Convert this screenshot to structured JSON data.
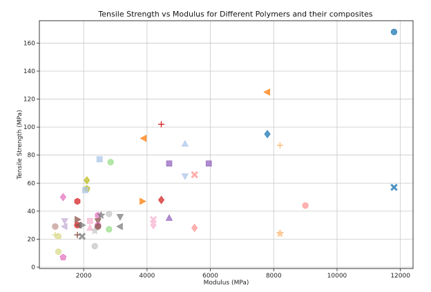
{
  "chart_data": {
    "type": "scatter",
    "title": "Tensile Strength vs Modulus for Different Polymers and their composites",
    "xlabel": "Modulus (MPa)",
    "ylabel": "Tensile Strength (MPa)",
    "xlim": [
      600,
      12400
    ],
    "ylim": [
      -1,
      176
    ],
    "xticks": [
      2000,
      4000,
      6000,
      8000,
      10000,
      12000
    ],
    "yticks": [
      0,
      20,
      40,
      60,
      80,
      100,
      120,
      140,
      160
    ],
    "xtick_labels": [
      "2000",
      "4000",
      "6000",
      "8000",
      "10000",
      "12000"
    ],
    "ytick_labels": [
      "0",
      "20",
      "40",
      "60",
      "80",
      "100",
      "120",
      "140",
      "160"
    ],
    "grid": true,
    "points": [
      {
        "x": 11800,
        "y": 168,
        "marker": "circle",
        "color": "#1f77b4"
      },
      {
        "x": 11800,
        "y": 57,
        "marker": "x",
        "color": "#1f77b4"
      },
      {
        "x": 7800,
        "y": 95,
        "marker": "diamond",
        "color": "#1f77b4"
      },
      {
        "x": 7800,
        "y": 125,
        "marker": "tri-left",
        "color": "#ff7f0e"
      },
      {
        "x": 8200,
        "y": 87,
        "marker": "plus",
        "color": "#ffbb78"
      },
      {
        "x": 8200,
        "y": 24,
        "marker": "star",
        "color": "#ffbb78"
      },
      {
        "x": 9000,
        "y": 44,
        "marker": "circle",
        "color": "#ff9896"
      },
      {
        "x": 3900,
        "y": 92,
        "marker": "tri-left",
        "color": "#ff7f0e"
      },
      {
        "x": 3850,
        "y": 47,
        "marker": "tri-right",
        "color": "#ff7f0e"
      },
      {
        "x": 4450,
        "y": 102,
        "marker": "plus",
        "color": "#d62728"
      },
      {
        "x": 4450,
        "y": 48,
        "marker": "diamond",
        "color": "#d62728"
      },
      {
        "x": 4700,
        "y": 74,
        "marker": "square",
        "color": "#9467bd"
      },
      {
        "x": 5950,
        "y": 74,
        "marker": "square",
        "color": "#9467bd"
      },
      {
        "x": 4700,
        "y": 35,
        "marker": "tri-up",
        "color": "#9467bd"
      },
      {
        "x": 5200,
        "y": 88,
        "marker": "tri-up",
        "color": "#aec7e8"
      },
      {
        "x": 5200,
        "y": 65,
        "marker": "tri-down",
        "color": "#aec7e8"
      },
      {
        "x": 5500,
        "y": 66,
        "marker": "x",
        "color": "#ff9896"
      },
      {
        "x": 5500,
        "y": 28,
        "marker": "diamond",
        "color": "#ff9896"
      },
      {
        "x": 4200,
        "y": 34,
        "marker": "x",
        "color": "#f7b6d2"
      },
      {
        "x": 4200,
        "y": 30,
        "marker": "diamond",
        "color": "#f7b6d2"
      },
      {
        "x": 2500,
        "y": 77,
        "marker": "square",
        "color": "#aec7e8"
      },
      {
        "x": 2850,
        "y": 75,
        "marker": "circle",
        "color": "#98df8a"
      },
      {
        "x": 2800,
        "y": 27,
        "marker": "circle",
        "color": "#98df8a"
      },
      {
        "x": 2100,
        "y": 62,
        "marker": "diamond",
        "color": "#bcbd22"
      },
      {
        "x": 2100,
        "y": 56,
        "marker": "pentagon",
        "color": "#bcbd22"
      },
      {
        "x": 2050,
        "y": 55,
        "marker": "square",
        "color": "#aec7e8"
      },
      {
        "x": 1800,
        "y": 47,
        "marker": "hexagon",
        "color": "#d62728"
      },
      {
        "x": 1350,
        "y": 50,
        "marker": "diamond",
        "color": "#e377c2"
      },
      {
        "x": 1800,
        "y": 34,
        "marker": "tri-right",
        "color": "#8c564b"
      },
      {
        "x": 1800,
        "y": 30,
        "marker": "circle",
        "color": "#d62728"
      },
      {
        "x": 1850,
        "y": 30,
        "marker": "tri-left",
        "color": "#8c564b"
      },
      {
        "x": 1950,
        "y": 30,
        "marker": "tri-right",
        "color": "#7f7f7f"
      },
      {
        "x": 1800,
        "y": 23,
        "marker": "plus",
        "color": "#8c564b"
      },
      {
        "x": 1950,
        "y": 22,
        "marker": "x",
        "color": "#7f7f7f"
      },
      {
        "x": 1400,
        "y": 33,
        "marker": "tri-down",
        "color": "#c5b0d5"
      },
      {
        "x": 1400,
        "y": 29,
        "marker": "tri-left",
        "color": "#c5b0d5"
      },
      {
        "x": 1100,
        "y": 29,
        "marker": "circle",
        "color": "#c49c94"
      },
      {
        "x": 1100,
        "y": 23,
        "marker": "plus",
        "color": "#dbdb8d"
      },
      {
        "x": 1200,
        "y": 22,
        "marker": "circle",
        "color": "#dbdb8d"
      },
      {
        "x": 1200,
        "y": 11,
        "marker": "circle",
        "color": "#dbdb8d"
      },
      {
        "x": 1350,
        "y": 7,
        "marker": "pentagon",
        "color": "#e377c2"
      },
      {
        "x": 2200,
        "y": 33,
        "marker": "square",
        "color": "#f7b6d2"
      },
      {
        "x": 2200,
        "y": 28,
        "marker": "tri-up",
        "color": "#f7b6d2"
      },
      {
        "x": 2350,
        "y": 26,
        "marker": "star",
        "color": "#c7c7c7"
      },
      {
        "x": 2350,
        "y": 15,
        "marker": "circle",
        "color": "#c7c7c7"
      },
      {
        "x": 2450,
        "y": 37,
        "marker": "hexagon",
        "color": "#e377c2"
      },
      {
        "x": 2450,
        "y": 33,
        "marker": "tri-down",
        "color": "#8c564b"
      },
      {
        "x": 2450,
        "y": 30,
        "marker": "circle",
        "color": "#e377c2"
      },
      {
        "x": 2450,
        "y": 29,
        "marker": "circle",
        "color": "#8c564b"
      },
      {
        "x": 2550,
        "y": 37,
        "marker": "star",
        "color": "#7f7f7f"
      },
      {
        "x": 2800,
        "y": 38,
        "marker": "circle",
        "color": "#c7c7c7"
      },
      {
        "x": 3150,
        "y": 36,
        "marker": "tri-down",
        "color": "#7f7f7f"
      },
      {
        "x": 3150,
        "y": 29,
        "marker": "tri-left",
        "color": "#7f7f7f"
      }
    ]
  }
}
